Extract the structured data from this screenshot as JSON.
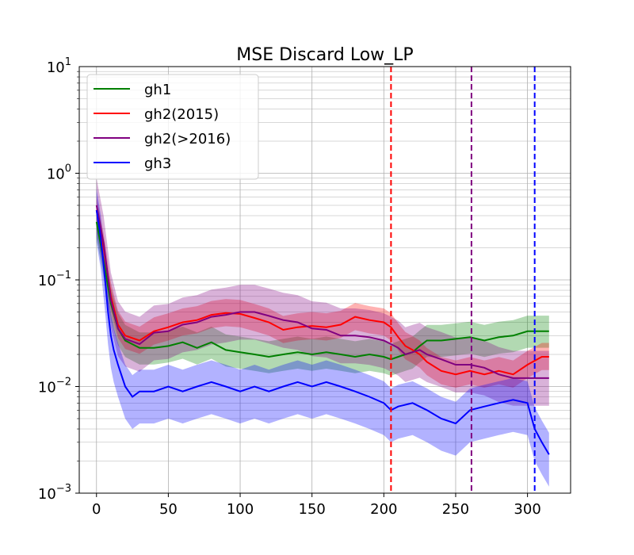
{
  "chart_data": {
    "type": "line",
    "title": "MSE Discard Low_LP",
    "xlabel": "",
    "ylabel": "",
    "yscale": "log",
    "xlim": [
      -12,
      330
    ],
    "ylim": [
      0.001,
      10
    ],
    "grid": true,
    "x_ticks": [
      0,
      50,
      100,
      150,
      200,
      250,
      300
    ],
    "x_tick_labels": [
      "0",
      "50",
      "100",
      "150",
      "200",
      "250",
      "300"
    ],
    "y_ticks": [
      {
        "value": 0.001,
        "base": "10",
        "exp": "−3"
      },
      {
        "value": 0.01,
        "base": "10",
        "exp": "−2"
      },
      {
        "value": 0.1,
        "base": "10",
        "exp": "−1"
      },
      {
        "value": 1,
        "base": "10",
        "exp": "0"
      },
      {
        "value": 10,
        "base": "10",
        "exp": "1"
      }
    ],
    "legend_position": "top-left",
    "series": [
      {
        "name": "gh1",
        "color": "#008000",
        "points": [
          [
            0,
            0.35
          ],
          [
            5,
            0.15
          ],
          [
            10,
            0.06
          ],
          [
            15,
            0.035
          ],
          [
            20,
            0.027
          ],
          [
            30,
            0.023
          ],
          [
            40,
            0.023
          ],
          [
            50,
            0.024
          ],
          [
            60,
            0.026
          ],
          [
            70,
            0.023
          ],
          [
            80,
            0.026
          ],
          [
            90,
            0.022
          ],
          [
            100,
            0.021
          ],
          [
            110,
            0.02
          ],
          [
            120,
            0.019
          ],
          [
            130,
            0.02
          ],
          [
            140,
            0.021
          ],
          [
            150,
            0.02
          ],
          [
            160,
            0.021
          ],
          [
            170,
            0.02
          ],
          [
            180,
            0.019
          ],
          [
            190,
            0.02
          ],
          [
            200,
            0.019
          ],
          [
            205,
            0.018
          ],
          [
            210,
            0.019
          ],
          [
            215,
            0.02
          ],
          [
            220,
            0.021
          ],
          [
            225,
            0.024
          ],
          [
            230,
            0.027
          ],
          [
            240,
            0.027
          ],
          [
            250,
            0.028
          ],
          [
            260,
            0.029
          ],
          [
            270,
            0.027
          ],
          [
            280,
            0.029
          ],
          [
            290,
            0.03
          ],
          [
            300,
            0.033
          ],
          [
            310,
            0.033
          ],
          [
            315,
            0.033
          ]
        ],
        "band": [
          0.7,
          1.4
        ]
      },
      {
        "name": "gh2(2015)",
        "color": "#ff0000",
        "points": [
          [
            0,
            0.45
          ],
          [
            5,
            0.2
          ],
          [
            10,
            0.07
          ],
          [
            15,
            0.038
          ],
          [
            20,
            0.03
          ],
          [
            30,
            0.027
          ],
          [
            40,
            0.033
          ],
          [
            50,
            0.036
          ],
          [
            60,
            0.04
          ],
          [
            70,
            0.042
          ],
          [
            80,
            0.047
          ],
          [
            90,
            0.049
          ],
          [
            100,
            0.048
          ],
          [
            110,
            0.044
          ],
          [
            120,
            0.04
          ],
          [
            130,
            0.034
          ],
          [
            140,
            0.036
          ],
          [
            150,
            0.037
          ],
          [
            160,
            0.036
          ],
          [
            170,
            0.038
          ],
          [
            180,
            0.045
          ],
          [
            190,
            0.042
          ],
          [
            200,
            0.04
          ],
          [
            205,
            0.036
          ],
          [
            210,
            0.029
          ],
          [
            215,
            0.024
          ],
          [
            220,
            0.022
          ],
          [
            225,
            0.02
          ],
          [
            230,
            0.017
          ],
          [
            240,
            0.014
          ],
          [
            250,
            0.013
          ],
          [
            260,
            0.014
          ],
          [
            270,
            0.013
          ],
          [
            280,
            0.014
          ],
          [
            290,
            0.013
          ],
          [
            300,
            0.016
          ],
          [
            310,
            0.019
          ],
          [
            315,
            0.019
          ]
        ],
        "band": [
          0.75,
          1.35
        ]
      },
      {
        "name": "gh2(>2016)",
        "color": "#800080",
        "points": [
          [
            0,
            0.5
          ],
          [
            5,
            0.22
          ],
          [
            10,
            0.065
          ],
          [
            15,
            0.035
          ],
          [
            20,
            0.028
          ],
          [
            30,
            0.025
          ],
          [
            40,
            0.032
          ],
          [
            50,
            0.033
          ],
          [
            60,
            0.038
          ],
          [
            70,
            0.04
          ],
          [
            80,
            0.045
          ],
          [
            90,
            0.047
          ],
          [
            100,
            0.05
          ],
          [
            110,
            0.05
          ],
          [
            120,
            0.046
          ],
          [
            130,
            0.042
          ],
          [
            140,
            0.04
          ],
          [
            150,
            0.035
          ],
          [
            160,
            0.034
          ],
          [
            170,
            0.03
          ],
          [
            180,
            0.03
          ],
          [
            190,
            0.029
          ],
          [
            200,
            0.027
          ],
          [
            205,
            0.025
          ],
          [
            210,
            0.023
          ],
          [
            215,
            0.02
          ],
          [
            220,
            0.021
          ],
          [
            225,
            0.022
          ],
          [
            230,
            0.02
          ],
          [
            240,
            0.018
          ],
          [
            250,
            0.016
          ],
          [
            260,
            0.016
          ],
          [
            270,
            0.015
          ],
          [
            280,
            0.013
          ],
          [
            290,
            0.012
          ],
          [
            300,
            0.012
          ],
          [
            310,
            0.012
          ],
          [
            315,
            0.012
          ]
        ],
        "band": [
          0.55,
          1.8
        ]
      },
      {
        "name": "gh3",
        "color": "#0000ff",
        "points": [
          [
            0,
            0.45
          ],
          [
            3,
            0.25
          ],
          [
            6,
            0.1
          ],
          [
            8,
            0.05
          ],
          [
            10,
            0.03
          ],
          [
            12,
            0.022
          ],
          [
            15,
            0.016
          ],
          [
            20,
            0.01
          ],
          [
            25,
            0.008
          ],
          [
            30,
            0.009
          ],
          [
            40,
            0.009
          ],
          [
            50,
            0.01
          ],
          [
            60,
            0.009
          ],
          [
            70,
            0.01
          ],
          [
            80,
            0.011
          ],
          [
            90,
            0.01
          ],
          [
            100,
            0.009
          ],
          [
            110,
            0.01
          ],
          [
            120,
            0.009
          ],
          [
            130,
            0.01
          ],
          [
            140,
            0.011
          ],
          [
            150,
            0.01
          ],
          [
            160,
            0.011
          ],
          [
            170,
            0.01
          ],
          [
            180,
            0.009
          ],
          [
            190,
            0.008
          ],
          [
            200,
            0.007
          ],
          [
            205,
            0.006
          ],
          [
            210,
            0.0065
          ],
          [
            220,
            0.007
          ],
          [
            230,
            0.006
          ],
          [
            240,
            0.005
          ],
          [
            250,
            0.0045
          ],
          [
            260,
            0.006
          ],
          [
            270,
            0.0065
          ],
          [
            280,
            0.007
          ],
          [
            290,
            0.0075
          ],
          [
            300,
            0.007
          ],
          [
            305,
            0.004
          ],
          [
            310,
            0.003
          ],
          [
            315,
            0.0023
          ]
        ],
        "band": [
          0.5,
          1.6
        ]
      }
    ],
    "vertical_lines": [
      {
        "x": 205,
        "color": "#ff0000",
        "style": "dashed"
      },
      {
        "x": 261,
        "color": "#800080",
        "style": "dashed"
      },
      {
        "x": 305,
        "color": "#0000ff",
        "style": "dashed"
      }
    ]
  }
}
